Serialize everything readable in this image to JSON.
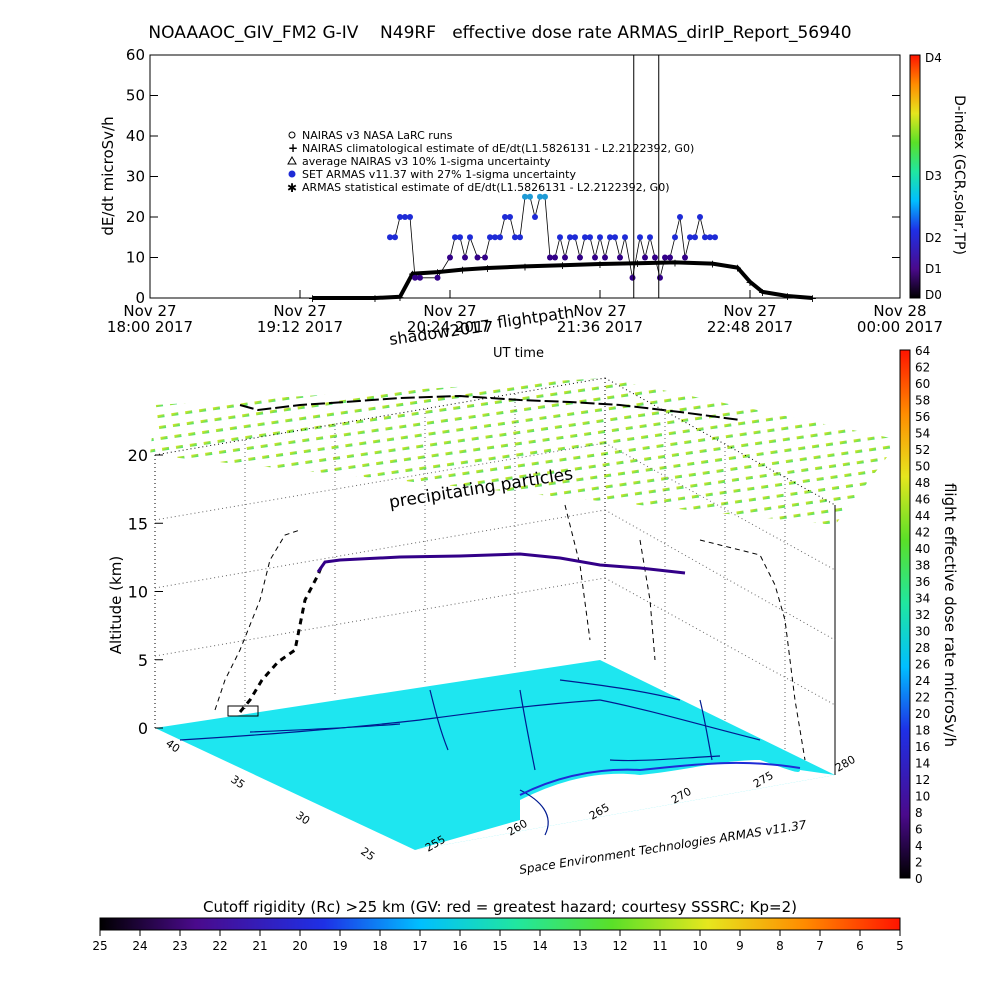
{
  "header": {
    "title": "NOAAAOC_GIV_FM2 G-IV    N49RF   effective dose rate ARMAS_dirIP_Report_56940"
  },
  "colors": {
    "surface": "#1ee6f0",
    "series_black": "#000000",
    "series_purple": "#330088",
    "series_blue": "#1e2bd6"
  },
  "chart_data": [
    {
      "type": "scatter",
      "title": "NOAAAOC_GIV_FM2 G-IV    N49RF   effective dose rate ARMAS_dirIP_Report_56940",
      "ylabel": "dE/dt microSv/h",
      "xlabel": "",
      "ylim": [
        0,
        60
      ],
      "yticks": [
        "0",
        "10",
        "20",
        "30",
        "40",
        "50",
        "60"
      ],
      "xticks": [
        {
          "day": "Nov 27",
          "time": "18:00 2017"
        },
        {
          "day": "Nov 27",
          "time": "19:12 2017"
        },
        {
          "day": "Nov 27",
          "time": "20:24 2017"
        },
        {
          "day": "Nov 27",
          "time": "21:36 2017"
        },
        {
          "day": "Nov 27",
          "time": "22:48 2017"
        },
        {
          "day": "Nov 28",
          "time": "00:00 2017"
        }
      ],
      "xlim_hours": [
        18.0,
        24.0
      ],
      "legend": [
        "NAIRAS v3 NASA LaRC runs",
        "NAIRAS climatological estimate of dE/dt(L1.5826131 - L2.2122392, G0)",
        "average NAIRAS v3 10% 1-sigma uncertainty",
        "SET ARMAS v11.37 with 27% 1-sigma uncertainty",
        "ARMAS statistical estimate of dE/dt(L1.5826131 - L2.2122392, G0)"
      ],
      "series": [
        {
          "name": "NAIRAS climatological estimate of dE/dt(L1.5826131 - L2.2122392, G0)",
          "x": [
            19.3,
            19.8,
            20.0,
            20.1,
            20.3,
            20.5,
            20.7,
            21.0,
            21.3,
            21.6,
            21.9,
            22.2,
            22.5,
            22.7,
            22.8,
            22.9,
            23.1,
            23.3
          ],
          "values": [
            0.0,
            0.0,
            0.3,
            6.0,
            6.4,
            7.0,
            7.4,
            7.8,
            8.1,
            8.4,
            8.6,
            8.8,
            8.5,
            7.5,
            4.0,
            1.5,
            0.5,
            0.0
          ]
        },
        {
          "name": "SET ARMAS v11.37 with 27% 1-sigma uncertainty",
          "x": [
            19.92,
            19.96,
            20.0,
            20.04,
            20.08,
            20.12,
            20.16,
            20.3,
            20.4,
            20.44,
            20.48,
            20.52,
            20.56,
            20.62,
            20.68,
            20.72,
            20.76,
            20.8,
            20.84,
            20.88,
            20.92,
            20.96,
            21.0,
            21.04,
            21.08,
            21.12,
            21.16,
            21.2,
            21.24,
            21.28,
            21.32,
            21.36,
            21.4,
            21.44,
            21.48,
            21.52,
            21.56,
            21.6,
            21.64,
            21.68,
            21.72,
            21.76,
            21.8,
            21.86,
            21.92,
            21.96,
            22.0,
            22.04,
            22.08,
            22.12,
            22.16,
            22.2,
            22.24,
            22.28,
            22.32,
            22.36,
            22.4,
            22.44,
            22.48,
            22.52
          ],
          "values": [
            15,
            15,
            20,
            20,
            20,
            5,
            5,
            5,
            10,
            15,
            15,
            10,
            15,
            10,
            10,
            15,
            15,
            15,
            20,
            20,
            15,
            15,
            25,
            25,
            20,
            25,
            25,
            10,
            10,
            15,
            10,
            15,
            15,
            10,
            15,
            15,
            10,
            15,
            10,
            15,
            15,
            10,
            15,
            5,
            15,
            10,
            15,
            10,
            5,
            10,
            10,
            15,
            20,
            10,
            15,
            15,
            20,
            15,
            15,
            15
          ]
        },
        {
          "name": "spike",
          "x": [
            21.87,
            22.07
          ],
          "values": [
            60,
            60
          ]
        }
      ],
      "colorbar": {
        "label": "D-index (GCR,solar,TP)",
        "ticks": [
          "D0",
          "D1",
          "D2",
          "D3",
          "D4"
        ]
      }
    },
    {
      "type": "scatter",
      "title": "",
      "annotations": [
        "shadow2017",
        "flightpath",
        "UT time",
        "precipitating particles",
        "Space Environment Technologies ARMAS v11.37"
      ],
      "zlabel": "Altitude (km)",
      "zticks": [
        "0",
        "5",
        "10",
        "15",
        "20"
      ],
      "lat_ticks": [
        "25",
        "30",
        "35",
        "40"
      ],
      "lon_ticks": [
        "255",
        "260",
        "265",
        "270",
        "275",
        "280"
      ],
      "flight_altitude_km": [
        0.5,
        2.0,
        4.0,
        6.0,
        8.0,
        10.5,
        12.0,
        12.5,
        12.6,
        12.4,
        12.0,
        11.6
      ],
      "colorbar": {
        "label": "flight effective dose rate microSv/h",
        "range": [
          0,
          64
        ],
        "ticks": [
          "0",
          "2",
          "4",
          "6",
          "8",
          "10",
          "12",
          "14",
          "16",
          "18",
          "20",
          "22",
          "24",
          "26",
          "28",
          "30",
          "32",
          "34",
          "36",
          "38",
          "40",
          "42",
          "44",
          "46",
          "48",
          "50",
          "52",
          "54",
          "56",
          "58",
          "60",
          "62",
          "64"
        ]
      }
    }
  ],
  "bottom_colorbar": {
    "label": "Cutoff rigidity (Rc) >25 km (GV: red = greatest hazard; courtesy SSSRC; Kp=2)",
    "ticks": [
      "25",
      "24",
      "23",
      "22",
      "21",
      "20",
      "19",
      "18",
      "17",
      "16",
      "15",
      "14",
      "13",
      "12",
      "11",
      "10",
      "9",
      "8",
      "7",
      "6",
      "5"
    ]
  }
}
